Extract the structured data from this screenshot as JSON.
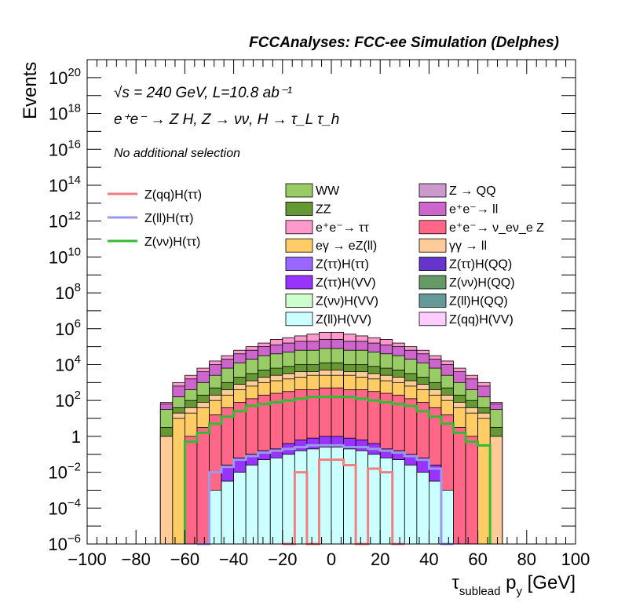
{
  "chart_data": {
    "type": "bar",
    "title": "FCCAnalyses: FCC-ee Simulation (Delphes)",
    "xlabel": "τ_sublead p_y [GeV]",
    "ylabel": "Events",
    "xlim": [
      -100,
      100
    ],
    "ylim_log10": [
      -6,
      21
    ],
    "y_scale": "log",
    "grid": false,
    "x_ticks": [
      -100,
      -80,
      -60,
      -40,
      -20,
      0,
      20,
      40,
      60,
      80,
      100
    ],
    "x_tick_labels": [
      "−100",
      "−80",
      "−60",
      "−40",
      "−20",
      "0",
      "20",
      "40",
      "60",
      "80",
      "100"
    ],
    "y_ticks": [
      {
        "exp": -6,
        "label": "10",
        "sup": "−6"
      },
      {
        "exp": -4,
        "label": "10",
        "sup": "−4"
      },
      {
        "exp": -2,
        "label": "10",
        "sup": "−2"
      },
      {
        "exp": 0,
        "label": "1",
        "sup": ""
      },
      {
        "exp": 2,
        "label": "10",
        "sup": "2"
      },
      {
        "exp": 4,
        "label": "10",
        "sup": "4"
      },
      {
        "exp": 6,
        "label": "10",
        "sup": "6"
      },
      {
        "exp": 8,
        "label": "10",
        "sup": "8"
      },
      {
        "exp": 10,
        "label": "10",
        "sup": "10"
      },
      {
        "exp": 12,
        "label": "10",
        "sup": "12"
      },
      {
        "exp": 14,
        "label": "10",
        "sup": "14"
      },
      {
        "exp": 16,
        "label": "10",
        "sup": "16"
      },
      {
        "exp": 18,
        "label": "10",
        "sup": "18"
      },
      {
        "exp": 20,
        "label": "10",
        "sup": "20"
      }
    ],
    "annotations": {
      "energy": "√s = 240 GeV, L=10.8 ab⁻¹",
      "process": "e⁺e⁻ → Z H, Z → νν, H → τ_L τ_h",
      "selection": "No additional selection"
    },
    "bin_edges": [
      -70,
      -65,
      -60,
      -55,
      -50,
      -45,
      -40,
      -35,
      -30,
      -25,
      -20,
      -15,
      -10,
      -5,
      0,
      5,
      10,
      15,
      20,
      25,
      30,
      35,
      40,
      45,
      50,
      55,
      60,
      65,
      70
    ],
    "stack_levels_log10": [
      {
        "name": "Z(ll)H(VV)",
        "color": "#ccffff",
        "values": [
          null,
          null,
          null,
          null,
          -3.0,
          -2.5,
          -2.0,
          -1.6,
          -1.3,
          -1.2,
          -1.0,
          -0.8,
          -0.7,
          -0.6,
          -0.6,
          -0.7,
          -0.8,
          -1.0,
          -1.2,
          -1.3,
          -1.6,
          -2.0,
          -2.5,
          -3.0,
          null,
          null,
          null,
          null
        ]
      },
      {
        "name": "Z(ττ)H(VV)",
        "color": "#9933ff",
        "values": [
          null,
          null,
          null,
          null,
          null,
          -1.6,
          -1.2,
          -1.0,
          -0.8,
          -0.7,
          -0.4,
          -0.2,
          -0.1,
          0.0,
          0.0,
          -0.1,
          -0.2,
          -0.4,
          -0.7,
          -0.8,
          -1.0,
          -1.2,
          -1.6,
          null,
          null,
          null,
          null,
          null
        ]
      },
      {
        "name": "e⁺e⁻ → ν_eν_e Z",
        "color": "#ff6688",
        "values": [
          null,
          null,
          0.0,
          0.5,
          1.2,
          1.6,
          1.9,
          2.1,
          2.3,
          2.4,
          2.5,
          2.6,
          2.6,
          2.7,
          2.7,
          2.6,
          2.6,
          2.5,
          2.4,
          2.3,
          2.1,
          1.9,
          1.6,
          1.2,
          0.5,
          0.0,
          null,
          null
        ]
      },
      {
        "name": "eγ → eZ(ll)",
        "color": "#ffcc66",
        "values": [
          null,
          1.0,
          1.3,
          1.6,
          2.0,
          2.3,
          2.6,
          2.8,
          3.0,
          3.1,
          3.2,
          3.3,
          3.4,
          3.4,
          3.4,
          3.4,
          3.3,
          3.2,
          3.1,
          3.0,
          2.8,
          2.6,
          2.3,
          2.0,
          1.6,
          1.3,
          1.0,
          null
        ]
      },
      {
        "name": "γγ → ll",
        "color": "#ffcc99",
        "values": [
          0.0,
          1.3,
          1.6,
          1.9,
          2.3,
          2.6,
          2.9,
          3.1,
          3.3,
          3.4,
          3.5,
          3.6,
          3.6,
          3.7,
          3.7,
          3.6,
          3.6,
          3.5,
          3.4,
          3.3,
          3.1,
          2.9,
          2.6,
          2.3,
          1.9,
          1.6,
          1.3,
          0.0
        ]
      },
      {
        "name": "ZZ",
        "color": "#669933",
        "values": [
          0.5,
          1.6,
          2.0,
          2.3,
          2.7,
          3.0,
          3.3,
          3.5,
          3.7,
          3.8,
          3.9,
          4.0,
          4.0,
          4.1,
          4.1,
          4.0,
          4.0,
          3.9,
          3.8,
          3.7,
          3.5,
          3.3,
          3.0,
          2.7,
          2.3,
          2.0,
          1.6,
          0.5
        ]
      },
      {
        "name": "WW",
        "color": "#99cc66",
        "values": [
          1.5,
          2.2,
          2.6,
          3.0,
          3.4,
          3.8,
          4.1,
          4.3,
          4.5,
          4.6,
          4.7,
          4.8,
          4.8,
          4.9,
          4.9,
          4.8,
          4.8,
          4.7,
          4.6,
          4.5,
          4.3,
          4.1,
          3.8,
          3.4,
          3.0,
          2.6,
          2.2,
          1.5
        ]
      },
      {
        "name": "e⁺e⁻ → ll",
        "color": "#cc66cc",
        "values": [
          1.8,
          2.8,
          3.2,
          3.6,
          4.0,
          4.3,
          4.6,
          4.8,
          5.0,
          5.1,
          5.2,
          5.3,
          5.3,
          5.4,
          5.4,
          5.3,
          5.3,
          5.2,
          5.1,
          5.0,
          4.8,
          4.6,
          4.3,
          4.0,
          3.6,
          3.2,
          2.8,
          1.8
        ]
      },
      {
        "name": "e⁺e⁻ → ττ",
        "color": "#ff99cc",
        "values": [
          1.9,
          3.0,
          3.4,
          3.8,
          4.2,
          4.5,
          4.8,
          5.0,
          5.2,
          5.4,
          5.5,
          5.6,
          5.7,
          5.8,
          5.8,
          5.7,
          5.6,
          5.5,
          5.4,
          5.2,
          5.0,
          4.8,
          4.5,
          4.2,
          3.8,
          3.4,
          3.0,
          1.9
        ]
      }
    ],
    "overlays_log10": [
      {
        "name": "Z(qq)H(ττ)",
        "color": "#f08080",
        "values": [
          null,
          null,
          null,
          null,
          null,
          null,
          null,
          null,
          null,
          null,
          -6.0,
          -2.0,
          -6.0,
          -1.3,
          -1.3,
          -1.6,
          -6.0,
          -1.8,
          -2.0,
          -6.0,
          null,
          null,
          null,
          null,
          null,
          null,
          null,
          null
        ]
      },
      {
        "name": "Z(ll)H(ττ)",
        "color": "#9999ee",
        "values": [
          null,
          null,
          null,
          -6.0,
          -2.0,
          -1.7,
          -1.3,
          -1.1,
          -0.9,
          -0.8,
          -0.7,
          -0.6,
          -0.5,
          -0.5,
          -0.5,
          -0.6,
          -0.6,
          -0.7,
          -0.8,
          -0.9,
          -1.1,
          -1.3,
          -1.8,
          -6.0,
          null,
          null,
          null,
          null
        ]
      },
      {
        "name": "Z(νν)H(ττ)",
        "color": "#33bb33",
        "values": [
          null,
          null,
          -0.3,
          0.2,
          0.7,
          1.1,
          1.4,
          1.7,
          1.8,
          1.9,
          2.0,
          2.1,
          2.2,
          2.2,
          2.2,
          2.2,
          2.1,
          2.0,
          1.9,
          1.8,
          1.7,
          1.4,
          1.1,
          0.7,
          0.2,
          -0.3,
          -0.5,
          null
        ]
      }
    ],
    "legend": {
      "placement": "top",
      "lines": [
        {
          "label": "Z(qq)H(ττ)",
          "color": "#f08080"
        },
        {
          "label": "Z(ll)H(ττ)",
          "color": "#9999ee"
        },
        {
          "label": "Z(νν)H(ττ)",
          "color": "#33bb33"
        }
      ],
      "fills_left": [
        {
          "label": "WW",
          "color": "#99cc66"
        },
        {
          "label": "ZZ",
          "color": "#669933"
        },
        {
          "label": "e⁺e⁻→ ττ",
          "color": "#ff99cc"
        },
        {
          "label": "eγ → eZ(ll)",
          "color": "#ffcc66"
        },
        {
          "label": "Z(ττ)H(ττ)",
          "color": "#9966ff"
        },
        {
          "label": "Z(ττ)H(VV)",
          "color": "#9933ff"
        },
        {
          "label": "Z(νν)H(VV)",
          "color": "#ccffcc"
        },
        {
          "label": "Z(ll)H(VV)",
          "color": "#ccffff"
        }
      ],
      "fills_right": [
        {
          "label": "Z → QQ",
          "color": "#cc99cc"
        },
        {
          "label": "e⁺e⁻→ ll",
          "color": "#cc66cc"
        },
        {
          "label": "e⁺e⁻→ ν_eν_e Z",
          "color": "#ff6688"
        },
        {
          "label": "γγ → ll",
          "color": "#ffcc99"
        },
        {
          "label": "Z(ττ)H(QQ)",
          "color": "#6633cc"
        },
        {
          "label": "Z(νν)H(QQ)",
          "color": "#669966"
        },
        {
          "label": "Z(ll)H(QQ)",
          "color": "#669999"
        },
        {
          "label": "Z(qq)H(VV)",
          "color": "#ffccff"
        }
      ]
    }
  }
}
